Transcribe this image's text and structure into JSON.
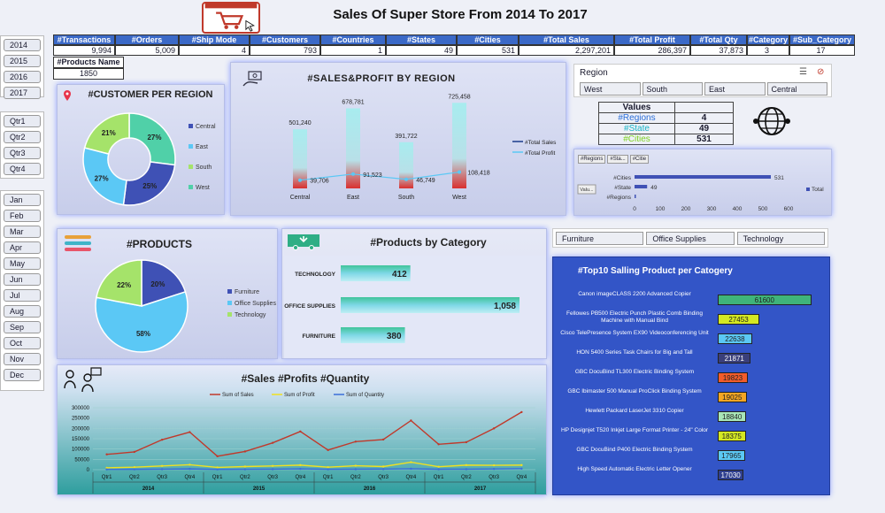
{
  "title": "Sales Of Super Store From 2014 To 2017",
  "kpi_headers": [
    "#Transactions",
    "#Orders",
    "#Ship Mode",
    "#Customers",
    "#Countries",
    "#States",
    "#Cities",
    "#Total Sales",
    "#Total Profit",
    "#Total Qty",
    "#Category",
    "#Sub_Category"
  ],
  "kpi_values": [
    "9,994",
    "5,009",
    "4",
    "793",
    "1",
    "49",
    "531",
    "2,297,201",
    "286,397",
    "37,873",
    "3",
    "17"
  ],
  "products_name": {
    "label": "#Products Name",
    "value": "1850"
  },
  "years": [
    "2014",
    "2015",
    "2016",
    "2017"
  ],
  "quarters": [
    "Qtr1",
    "Qtr2",
    "Qtr3",
    "Qtr4"
  ],
  "months": [
    "Jan",
    "Feb",
    "Mar",
    "Apr",
    "May",
    "Jun",
    "Jul",
    "Aug",
    "Sep",
    "Oct",
    "Nov",
    "Dec"
  ],
  "customer_region": {
    "title": "#CUSTOMER PER REGION",
    "legend": [
      "Central",
      "East",
      "South",
      "West"
    ],
    "colors": [
      "#3f51b5",
      "#5bc8f5",
      "#a5e36a",
      "#50d0a8"
    ]
  },
  "sales_profit": {
    "title": "#SALES&PROFIT BY REGION",
    "legend": [
      "#Total Sales",
      "#Total Profit"
    ]
  },
  "region_slicer": {
    "label": "Region",
    "items": [
      "West",
      "South",
      "East",
      "Central"
    ]
  },
  "values_table": {
    "header": "Values",
    "rows": [
      {
        "label": "#Regions",
        "value": "4",
        "color": "#2a6ed8"
      },
      {
        "label": "#State",
        "value": "49",
        "color": "#19b5c7"
      },
      {
        "label": "#Cities",
        "value": "531",
        "color": "#7ed321"
      }
    ]
  },
  "small_chart": {
    "tabs": [
      "#Regions",
      "#Sta...",
      "#Citie"
    ],
    "val_tab": "Valu...",
    "legend": "Total",
    "ticks": [
      "0",
      "100",
      "200",
      "300",
      "400",
      "500",
      "600"
    ]
  },
  "products": {
    "title": "#PRODUCTS",
    "legend": [
      "Furniture",
      "Office Supplies",
      "Technology"
    ]
  },
  "products_by_category": {
    "title": "#Products by Category"
  },
  "category_buttons": [
    "Furniture",
    "Office Supplies",
    "Technology"
  ],
  "top10": {
    "title": "#Top10 Salling Product per Catogery"
  },
  "sales_trend": {
    "title": "#Sales #Profits #Quantity",
    "legend": [
      "Sum of Sales",
      "Sum of Profit",
      "Sum of Quantity"
    ],
    "years": [
      "2014",
      "2015",
      "2016",
      "2017"
    ]
  },
  "chart_data": [
    {
      "type": "pie",
      "title": "#CUSTOMER PER REGION",
      "categories": [
        "Central",
        "East",
        "South",
        "West"
      ],
      "values": [
        25,
        27,
        21,
        27
      ]
    },
    {
      "type": "bar",
      "title": "#SALES&PROFIT BY REGION",
      "categories": [
        "Central",
        "East",
        "South",
        "West"
      ],
      "series": [
        {
          "name": "#Total Sales",
          "values": [
            501240,
            678781,
            391722,
            725458
          ]
        },
        {
          "name": "#Total Profit",
          "values": [
            39706,
            91523,
            46749,
            108418
          ]
        }
      ]
    },
    {
      "type": "bar",
      "categories": [
        "#Cities",
        "#State",
        "#Regions"
      ],
      "values": [
        531,
        49,
        4
      ],
      "xlim": [
        0,
        600
      ]
    },
    {
      "type": "pie",
      "title": "#PRODUCTS",
      "categories": [
        "Furniture",
        "Office Supplies",
        "Technology"
      ],
      "values": [
        20,
        58,
        22
      ]
    },
    {
      "type": "bar",
      "title": "#Products by Category",
      "categories": [
        "TECHNOLOGY",
        "OFFICE SUPPLIES",
        "FURNITURE"
      ],
      "values": [
        412,
        1058,
        380
      ]
    },
    {
      "type": "bar",
      "title": "#Top10 Salling Product per Catogery",
      "categories": [
        "Canon imageCLASS 2200 Advanced Copier",
        "Fellowes PB500 Electric Punch Plastic Comb Binding Machine with Manual Bind",
        "Cisco TelePresence System EX90 Videoconferencing Unit",
        "HON 5400 Series Task Chairs for Big and Tall",
        "GBC DocuBind TL300 Electric Binding System",
        "GBC Ibimaster 500 Manual ProClick Binding System",
        "Hewlett Packard LaserJet 3310 Copier",
        "HP Designjet T520 Inkjet Large Format Printer - 24\" Color",
        "GBC DocuBind P400 Electric Binding System",
        "High Speed Automatic Electric Letter Opener"
      ],
      "values": [
        61600,
        27453,
        22638,
        21871,
        19823,
        19025,
        18840,
        18375,
        17965,
        17030
      ],
      "colors": [
        "#3fb47a",
        "#d4e823",
        "#5bc8f5",
        "#3a3f7a",
        "#f25c2a",
        "#f5a623",
        "#a8e6b8",
        "#d4e823",
        "#5bc8f5",
        "#2f3f8f"
      ]
    },
    {
      "type": "line",
      "title": "#Sales #Profits #Quantity",
      "x": [
        "Qtr1",
        "Qtr2",
        "Qtr3",
        "Qtr4",
        "Qtr1",
        "Qtr2",
        "Qtr3",
        "Qtr4",
        "Qtr1",
        "Qtr2",
        "Qtr3",
        "Qtr4",
        "Qtr1",
        "Qtr2",
        "Qtr3",
        "Qtr4"
      ],
      "groups": [
        "2014",
        "2015",
        "2016",
        "2017"
      ],
      "ylim": [
        0,
        300000
      ],
      "yticks": [
        "0",
        "50000",
        "100000",
        "150000",
        "200000",
        "250000",
        "300000"
      ],
      "series": [
        {
          "name": "Sum of Sales",
          "color": "#c0392b",
          "values": [
            74000,
            86000,
            145000,
            182000,
            65000,
            88000,
            130000,
            185000,
            95000,
            136000,
            146000,
            238000,
            123000,
            133000,
            200000,
            279000
          ]
        },
        {
          "name": "Sum of Profit",
          "color": "#f0e020",
          "values": [
            9000,
            12000,
            18000,
            24000,
            11000,
            15000,
            18000,
            22000,
            12000,
            19000,
            15000,
            36000,
            14000,
            22000,
            21000,
            22000
          ]
        },
        {
          "name": "Sum of Quantity",
          "color": "#3b6ed8",
          "values": [
            1400,
            1600,
            2600,
            3700,
            1200,
            1800,
            2600,
            3900,
            1700,
            2400,
            2900,
            4700,
            2100,
            2600,
            3500,
            5000
          ]
        }
      ]
    }
  ]
}
